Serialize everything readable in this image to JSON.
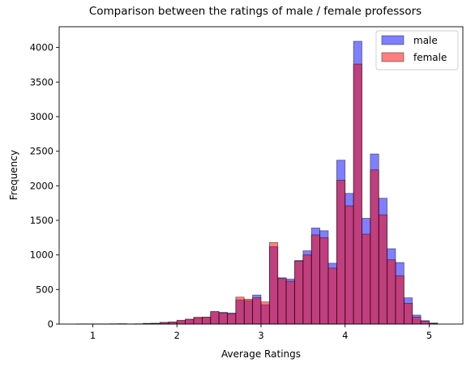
{
  "chart_data": {
    "type": "bar",
    "title": "Comparison between the ratings of male / female professors",
    "xlabel": "Average Ratings",
    "ylabel": "Frequency",
    "xlim": [
      0.6,
      5.4
    ],
    "ylim": [
      0,
      4300
    ],
    "x_ticks": [
      "1",
      "2",
      "3",
      "4",
      "5"
    ],
    "y_ticks": [
      "0",
      "500",
      "1000",
      "1500",
      "2000",
      "2500",
      "3000",
      "3500",
      "4000"
    ],
    "bin_width": 0.1,
    "bin_starts": [
      0.8,
      0.9,
      1.0,
      1.1,
      1.2,
      1.3,
      1.4,
      1.5,
      1.6,
      1.7,
      1.8,
      1.9,
      2.0,
      2.1,
      2.2,
      2.3,
      2.4,
      2.5,
      2.6,
      2.7,
      2.8,
      2.9,
      3.0,
      3.1,
      3.2,
      3.3,
      3.4,
      3.5,
      3.6,
      3.7,
      3.8,
      3.9,
      4.0,
      4.1,
      4.2,
      4.3,
      4.4,
      4.5,
      4.6,
      4.7,
      4.8,
      4.9,
      5.0
    ],
    "series": [
      {
        "name": "male",
        "color": "#0000ff",
        "opacity": 0.5,
        "values": [
          2,
          2,
          2,
          2,
          3,
          5,
          2,
          3,
          10,
          12,
          25,
          30,
          50,
          70,
          90,
          100,
          180,
          170,
          160,
          350,
          340,
          420,
          280,
          1120,
          670,
          650,
          920,
          1060,
          1390,
          1350,
          880,
          2370,
          1890,
          4090,
          1530,
          2460,
          1820,
          1090,
          890,
          380,
          130,
          50,
          15
        ]
      },
      {
        "name": "female",
        "color": "#ff0000",
        "opacity": 0.5,
        "values": [
          1,
          1,
          1,
          1,
          2,
          3,
          1,
          2,
          8,
          10,
          22,
          28,
          55,
          70,
          100,
          100,
          180,
          160,
          150,
          390,
          360,
          380,
          320,
          1180,
          660,
          620,
          910,
          1000,
          1290,
          1250,
          810,
          2080,
          1710,
          3760,
          1300,
          2230,
          1580,
          930,
          700,
          300,
          100,
          40,
          10
        ]
      }
    ],
    "legend": "top-right",
    "grid": false
  }
}
